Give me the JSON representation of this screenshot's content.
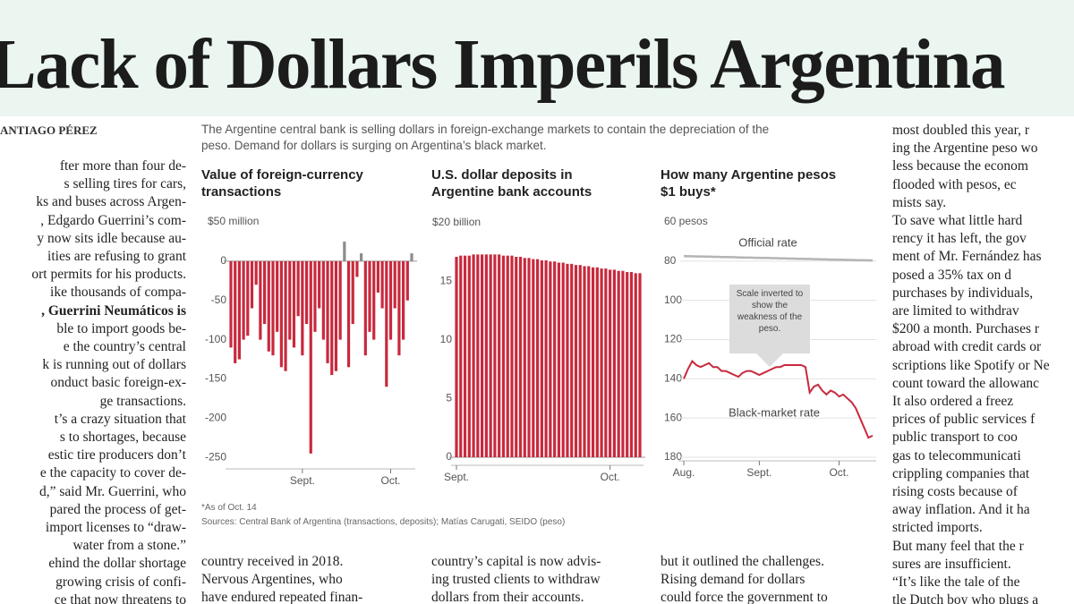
{
  "headline": "Lack of Dollars Imperils Argentina",
  "byline": "ANTIAGO PÉREZ",
  "left_column": [
    "fter more than four de-",
    "s selling tires for cars,",
    "ks and buses across Argen-",
    ", Edgardo Guerrini’s com-",
    "y now sits idle because au-",
    "ities are refusing to grant",
    "ort permits for his products.",
    "ike thousands of compa-",
    ", Guerrini Neumáticos is",
    "ble to import goods be-",
    "e the country’s central",
    "k is running out of dollars",
    "onduct basic foreign-ex-",
    "ge transactions.",
    "t’s a crazy situation that",
    "s to shortages, because",
    "estic tire producers don’t",
    "e the capacity to cover de-",
    "d,” said Mr. Guerrini, who",
    "pared the process of get-",
    "import licenses to “draw-",
    "water from a stone.”",
    "ehind the dollar shortage",
    "growing crisis of confi-",
    "ce that now threatens to"
  ],
  "right_column": [
    "most doubled this year, r",
    "ing the Argentine peso wo",
    "less because the econom",
    "flooded with pesos, ec",
    "mists say.",
    "To save what little hard",
    "rency it has left, the gov",
    "ment of Mr. Fernández has",
    "posed a 35% tax on d",
    "purchases by individuals,",
    "are limited to withdrav",
    "$200 a month. Purchases r",
    "abroad with credit cards or",
    "scriptions like Spotify or Ne",
    "count toward the allowanc",
    "It also ordered a freez",
    "prices of public services f",
    "public transport to coo",
    "gas to telecommunicati",
    "crippling companies that",
    "rising costs because of",
    "away inflation. And it ha",
    "stricted imports.",
    "But many feel that the r",
    "sures are insufficient.",
    "“It’s like the tale of the",
    "tle Dutch boy who plugs a"
  ],
  "bottom_columns": [
    [
      "country received in 2018.",
      "Nervous Argentines, who",
      "have endured repeated finan-"
    ],
    [
      "country’s capital is now advis-",
      "ing trusted clients to withdraw",
      "dollars from their accounts."
    ],
    [
      "but it outlined the challenges.",
      "Rising demand for dollars",
      "could force the government to"
    ]
  ],
  "graphic": {
    "intro": "The Argentine central bank is selling dollars in foreign-exchange markets to contain the depreciation of the peso. Demand for dollars is surging on Argentina’s black market.",
    "footnote": "*As of Oct. 14",
    "sources": "Sources: Central Bank of Argentina (transactions, deposits); Matías Carugati, SEIDO (peso)"
  },
  "chart_data": [
    {
      "type": "bar",
      "title": "Value of foreign-currency transactions",
      "categories": [
        null,
        null,
        null,
        null,
        null,
        null,
        null,
        null,
        null,
        null,
        null,
        null,
        null,
        null,
        null,
        null,
        null,
        "Sept.",
        null,
        null,
        null,
        null,
        null,
        null,
        null,
        null,
        null,
        null,
        null,
        null,
        null,
        null,
        null,
        null,
        null,
        null,
        null,
        null,
        "Oct.",
        null,
        null,
        null,
        null,
        null
      ],
      "values": [
        -110,
        -130,
        -125,
        -100,
        -95,
        -60,
        -30,
        -100,
        -80,
        -115,
        -120,
        -90,
        -135,
        -140,
        -100,
        -110,
        -70,
        -120,
        -80,
        -245,
        -90,
        -60,
        -100,
        -130,
        -145,
        -140,
        -100,
        25,
        -135,
        -80,
        -20,
        10,
        -120,
        -90,
        -100,
        -40,
        -60,
        -160,
        -100,
        -60,
        -120,
        -100,
        -50,
        10
      ],
      "color": "#c8293d",
      "positive_color": "#8c8c8c",
      "ylim": [
        -260,
        50
      ],
      "yticks": [
        {
          "value": 50,
          "label": "$50 million"
        },
        0,
        -50,
        -100,
        -150,
        -200,
        -250
      ],
      "grid": false
    },
    {
      "type": "bar",
      "title": "U.S. dollar deposits in Argentine bank accounts",
      "categories": [
        "Sept.",
        null,
        null,
        null,
        null,
        null,
        null,
        null,
        null,
        null,
        null,
        null,
        null,
        null,
        null,
        null,
        null,
        null,
        null,
        null,
        null,
        null,
        null,
        null,
        null,
        null,
        null,
        null,
        null,
        null,
        null,
        null,
        null,
        null,
        null,
        null,
        "Oct.",
        null,
        null,
        null,
        null,
        null,
        null,
        null
      ],
      "values": [
        17.1,
        17.2,
        17.2,
        17.2,
        17.3,
        17.3,
        17.3,
        17.3,
        17.3,
        17.3,
        17.3,
        17.2,
        17.2,
        17.2,
        17.1,
        17.1,
        17.0,
        17.0,
        16.9,
        16.9,
        16.8,
        16.8,
        16.7,
        16.7,
        16.6,
        16.6,
        16.5,
        16.5,
        16.4,
        16.4,
        16.3,
        16.3,
        16.2,
        16.2,
        16.1,
        16.1,
        16.0,
        16.0,
        15.9,
        15.9,
        15.8,
        15.8,
        15.7,
        15.7
      ],
      "color": "#c8293d",
      "ylim": [
        0,
        20
      ],
      "yticks": [
        {
          "value": 20,
          "label": "$20 billion"
        },
        15,
        10,
        5,
        0
      ],
      "grid": false
    },
    {
      "type": "line",
      "title": "How many Argentine pesos $1 buys*",
      "categories": [
        "Aug.",
        null,
        null,
        null,
        null,
        null,
        null,
        null,
        null,
        null,
        null,
        null,
        null,
        null,
        null,
        null,
        null,
        null,
        "Sept.",
        null,
        null,
        null,
        null,
        null,
        null,
        null,
        null,
        null,
        null,
        null,
        null,
        null,
        null,
        null,
        null,
        null,
        null,
        "Oct.",
        null,
        null,
        null,
        null,
        null,
        null,
        null,
        null
      ],
      "series": [
        {
          "name": "Official rate",
          "color": "#b4b4b4",
          "values": [
            77.4,
            77.5,
            77.5,
            77.6,
            77.6,
            77.7,
            77.7,
            77.8,
            77.8,
            77.9,
            77.9,
            78.0,
            78.0,
            78.1,
            78.1,
            78.2,
            78.2,
            78.3,
            78.3,
            78.4,
            78.4,
            78.5,
            78.5,
            78.6,
            78.6,
            78.7,
            78.7,
            78.8,
            78.8,
            78.9,
            78.9,
            79.0,
            79.0,
            79.1,
            79.1,
            79.2,
            79.2,
            79.3,
            79.3,
            79.4,
            79.4,
            79.5,
            79.5,
            79.5,
            79.6,
            79.6
          ]
        },
        {
          "name": "Black-market rate",
          "color": "#c8293d",
          "values": [
            140,
            135,
            131,
            133,
            134,
            133,
            132,
            134,
            134,
            136,
            136,
            137,
            138,
            139,
            137,
            136,
            136,
            137,
            138,
            137,
            136,
            135,
            134,
            134,
            133,
            133,
            133,
            133,
            133,
            134,
            147,
            144,
            143,
            146,
            148,
            146,
            147,
            149,
            148,
            150,
            152,
            155,
            160,
            165,
            170,
            169
          ]
        }
      ],
      "annotation": "Scale inverted to show the weakness of the peso.",
      "ylim": [
        60,
        180
      ],
      "inverted": true,
      "yticks": [
        {
          "value": 60,
          "label": "60 pesos"
        },
        80,
        100,
        120,
        140,
        160,
        180
      ],
      "grid": true
    }
  ]
}
